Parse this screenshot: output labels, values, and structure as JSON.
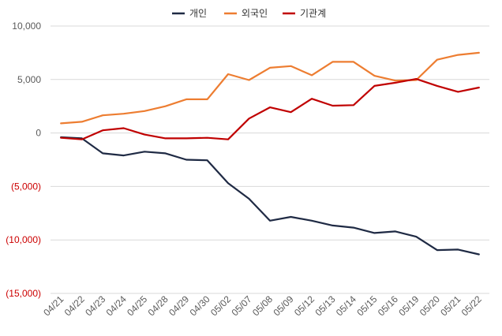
{
  "chart_data": {
    "type": "line",
    "title": "",
    "xlabel": "",
    "ylabel": "",
    "ylim": [
      -15000,
      10000
    ],
    "y_ticks": [
      {
        "value": 10000,
        "label": "10,000",
        "negative": false
      },
      {
        "value": 5000,
        "label": "5,000",
        "negative": false
      },
      {
        "value": 0,
        "label": "0",
        "negative": false
      },
      {
        "value": -5000,
        "label": "(5,000)",
        "negative": true
      },
      {
        "value": -10000,
        "label": "(10,000)",
        "negative": true
      },
      {
        "value": -15000,
        "label": "(15,000)",
        "negative": true
      }
    ],
    "grid": "horizontal",
    "legend_position": "top-center",
    "categories": [
      "04/21",
      "04/22",
      "04/23",
      "04/24",
      "04/25",
      "04/28",
      "04/29",
      "04/30",
      "05/02",
      "05/07",
      "05/08",
      "05/09",
      "05/12",
      "05/13",
      "05/14",
      "05/15",
      "05/16",
      "05/19",
      "05/20",
      "05/21",
      "05/22"
    ],
    "series": [
      {
        "name": "개인",
        "color": "#1f2a44",
        "values": [
          -400,
          -500,
          -1900,
          -2100,
          -1750,
          -1900,
          -2500,
          -2550,
          -4700,
          -6150,
          -8200,
          -7850,
          -8200,
          -8650,
          -8850,
          -9350,
          -9200,
          -9700,
          -10950,
          -10900,
          -11350
        ]
      },
      {
        "name": "외국인",
        "color": "#ed7d31",
        "values": [
          900,
          1050,
          1650,
          1800,
          2050,
          2500,
          3150,
          3150,
          5500,
          4950,
          6100,
          6250,
          5400,
          6650,
          6650,
          5350,
          4900,
          4950,
          6850,
          7300,
          7500
        ]
      },
      {
        "name": "기관계",
        "color": "#c00000",
        "values": [
          -450,
          -600,
          250,
          450,
          -150,
          -500,
          -500,
          -450,
          -600,
          1350,
          2400,
          1950,
          3200,
          2550,
          2600,
          4400,
          4700,
          5050,
          4400,
          3850,
          4250
        ]
      }
    ]
  }
}
